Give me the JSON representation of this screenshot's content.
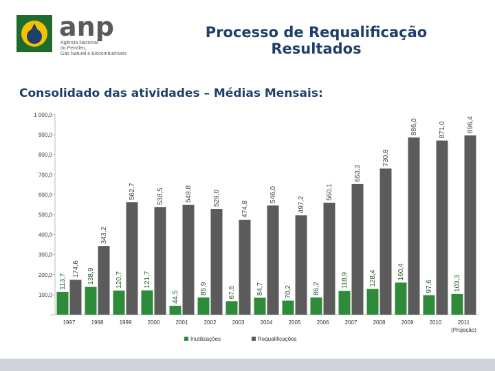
{
  "header": {
    "title_line1": "Processo de Requalificação",
    "title_line2": "Resultados",
    "subtitle": "Consolidado das atividades – Médias Mensais:"
  },
  "logo": {
    "name": "anp",
    "line1": "Agência Nacional",
    "line2": "do Petróleo,",
    "line3": "Gás Natural e Biocombustíveis"
  },
  "colors": {
    "series1": "#2e8b3a",
    "series2": "#5b5b5b",
    "title": "#1f3f6b"
  },
  "chart_data": {
    "type": "bar",
    "categories": [
      "1997",
      "1998",
      "1999",
      "2000",
      "2001",
      "2002",
      "2003",
      "2004",
      "2005",
      "2006",
      "2007",
      "2008",
      "2009",
      "2010",
      "2011"
    ],
    "category_sublabels": {
      "2011": "(Projeção)"
    },
    "series": [
      {
        "name": "Inutilizações",
        "values": [
          113.7,
          138.9,
          120.7,
          121.7,
          44.5,
          85.9,
          67.5,
          84.7,
          70.2,
          86.2,
          118.9,
          128.4,
          160.4,
          97.6,
          103.3
        ],
        "labels": [
          "113,7",
          "138,9",
          "120,7",
          "121,7",
          "44,5",
          "85,9",
          "67,5",
          "84,7",
          "70,2",
          "86,2",
          "118,9",
          "128,4",
          "160,4",
          "97,6",
          "103,3"
        ]
      },
      {
        "name": "Requalificações",
        "values": [
          174.6,
          343.2,
          562.7,
          538.5,
          549.8,
          529.0,
          474.8,
          546.0,
          497.2,
          560.1,
          653.3,
          730.8,
          886.0,
          871.0,
          896.4
        ],
        "labels": [
          "174,6",
          "343,2",
          "562,7",
          "538,5",
          "549,8",
          "529,0",
          "474,8",
          "546,0",
          "497,2",
          "560,1",
          "653,3",
          "730,8",
          "886,0",
          "871,0",
          "896,4"
        ]
      }
    ],
    "yticks": [
      "-",
      "100,0",
      "200,0",
      "300,0",
      "400,0",
      "500,0",
      "600,0",
      "700,0",
      "800,0",
      "900,0",
      "1 000,0"
    ],
    "ylim": [
      0,
      1000
    ],
    "legend_position": "bottom",
    "grid": false
  }
}
